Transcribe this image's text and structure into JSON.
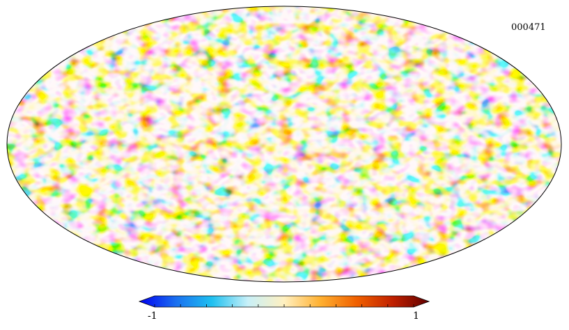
{
  "map": {
    "projection": "mollweide",
    "label": "000471"
  },
  "colorbar": {
    "min_label": "-1",
    "max_label": "1",
    "colors": [
      "#0000f0",
      "#1a6ef0",
      "#1ec0f0",
      "#c8f0f8",
      "#fff0c0",
      "#ffb030",
      "#f06000",
      "#c02000",
      "#600000"
    ]
  }
}
